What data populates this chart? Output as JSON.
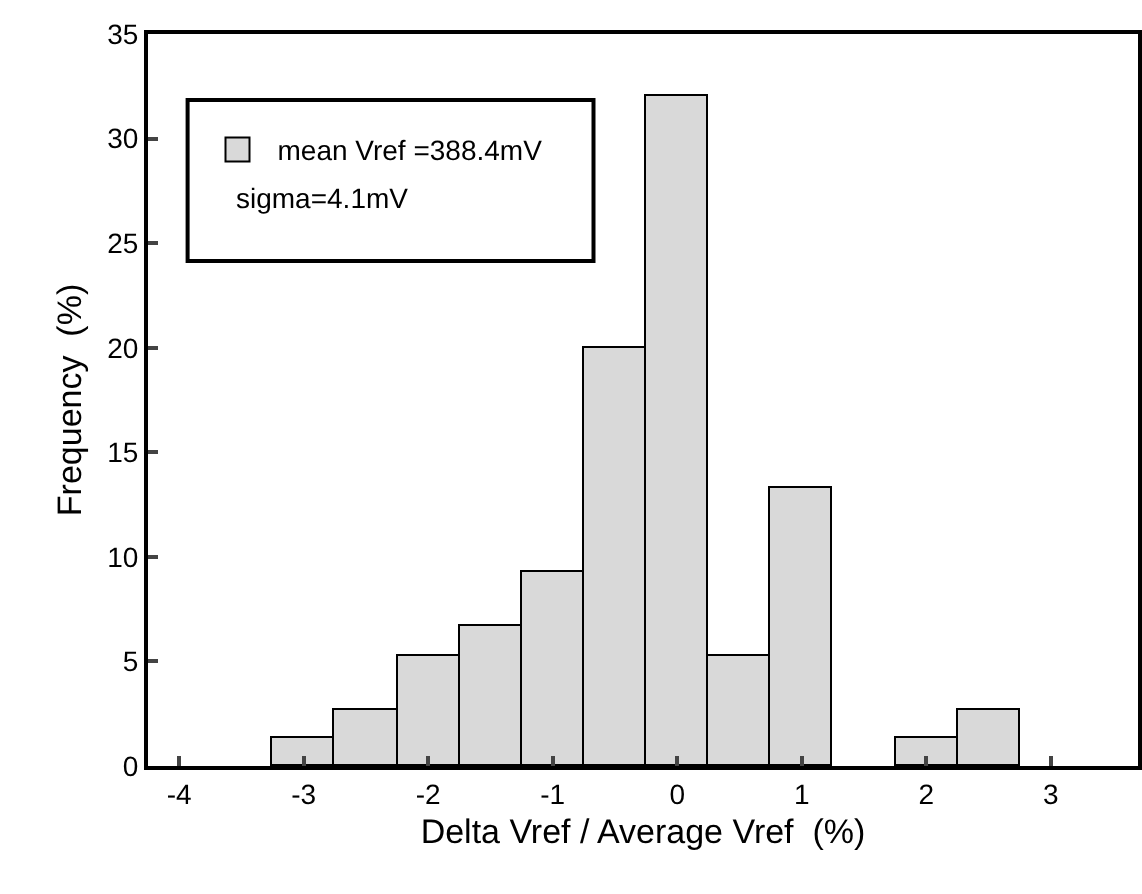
{
  "chart_data": {
    "type": "histogram",
    "xlabel": "Delta Vref / Average Vref  (%)",
    "ylabel": "Frequency  (%)",
    "bins": [
      -3.25,
      -2.75,
      -2.25,
      -1.75,
      -1.25,
      -0.75,
      -0.25,
      0.25,
      0.75,
      1.25,
      1.75,
      2.25,
      2.75
    ],
    "series": [
      {
        "name": "mean Vref =388.4mV",
        "color": "#d9d9d9",
        "values": [
          1.3,
          2.7,
          5.3,
          6.7,
          9.3,
          20,
          32,
          5.3,
          13.3,
          0,
          1.3,
          2.7
        ]
      }
    ],
    "annotations": [
      "sigma=4.1mV"
    ],
    "xlim": [
      -4.25,
      3.7
    ],
    "xticks": [
      -4,
      -3,
      -2,
      -1,
      0,
      1,
      2,
      3
    ],
    "ylim": [
      0,
      35
    ],
    "yticks": [
      0,
      5,
      10,
      15,
      20,
      25,
      30,
      35
    ],
    "grid": false,
    "legend": "top left"
  }
}
